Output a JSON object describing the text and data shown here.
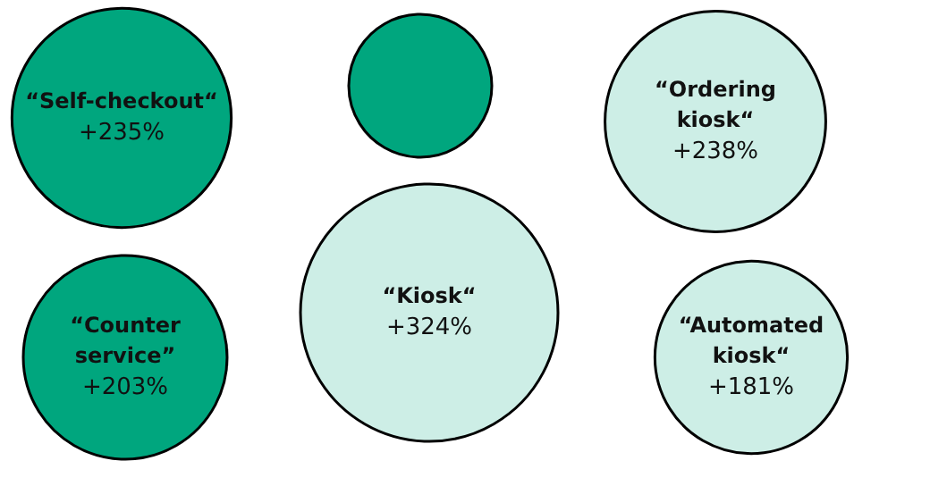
{
  "chart_data": {
    "type": "other",
    "categories": [
      "“Self-checkout“",
      null,
      "“Ordering kiosk“",
      "“Kiosk“",
      "“Counter service”",
      "“Automated kiosk“"
    ],
    "values": [
      235,
      null,
      238,
      324,
      203,
      181
    ],
    "value_labels": [
      "+235%",
      null,
      "+238%",
      "+324%",
      "+203%",
      "+181%"
    ],
    "colors": [
      "#00a67e",
      "#00a67e",
      "#cdeee6",
      "#cdeee6",
      "#00a67e",
      "#cdeee6"
    ]
  }
}
